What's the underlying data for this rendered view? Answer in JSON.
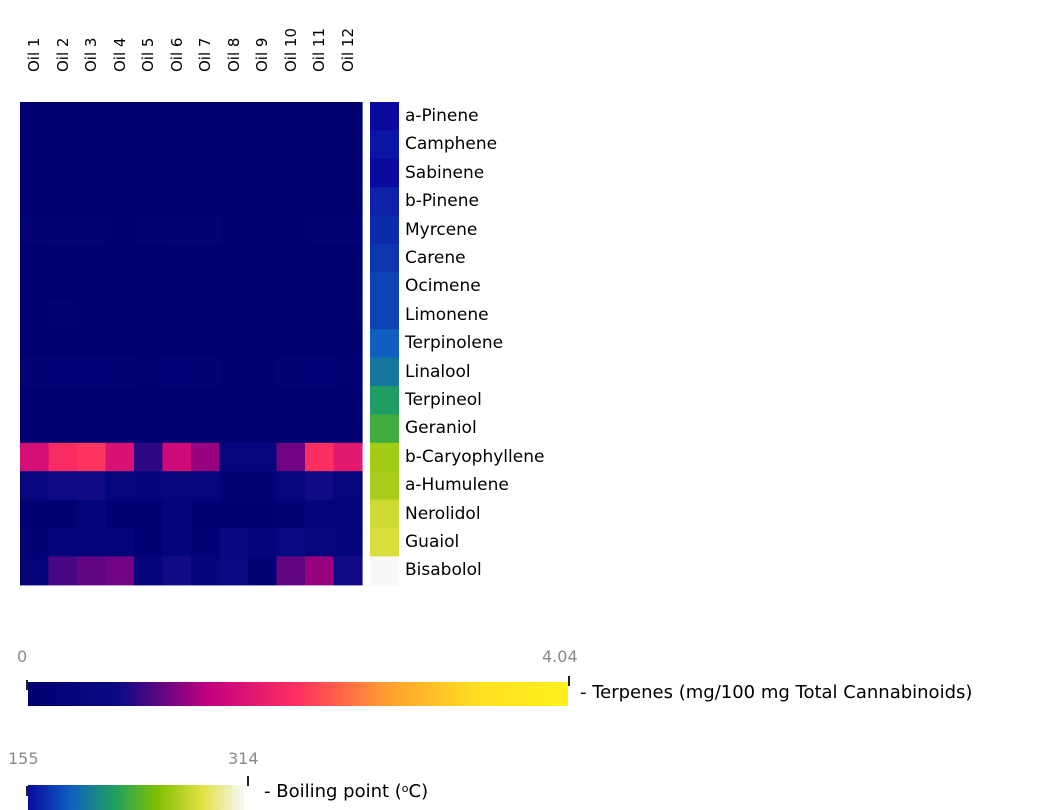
{
  "chart_data": {
    "type": "heatmap",
    "columns": [
      "Oil 1",
      "Oil 2",
      "Oil 3",
      "Oil 4",
      "Oil 5",
      "Oil 6",
      "Oil 7",
      "Oil 8",
      "Oil 9",
      "Oil 10",
      "Oil 11",
      "Oil 12"
    ],
    "rows": [
      "a-Pinene",
      "Camphene",
      "Sabinene",
      "b-Pinene",
      "Myrcene",
      "Carene",
      "Ocimene",
      "Limonene",
      "Terpinolene",
      "Linalool",
      "Terpineol",
      "Geraniol",
      "b-Caryophyllene",
      "a-Humulene",
      "Nerolidol",
      "Guaiol",
      "Bisabolol"
    ],
    "values": [
      [
        0.02,
        0.02,
        0.02,
        0.02,
        0.02,
        0.02,
        0.02,
        0.02,
        0.02,
        0.02,
        0.02,
        0.02
      ],
      [
        0.02,
        0.02,
        0.02,
        0.02,
        0.02,
        0.02,
        0.02,
        0.02,
        0.02,
        0.02,
        0.02,
        0.02
      ],
      [
        0.02,
        0.02,
        0.02,
        0.02,
        0.02,
        0.02,
        0.02,
        0.02,
        0.02,
        0.02,
        0.02,
        0.02
      ],
      [
        0.02,
        0.02,
        0.02,
        0.02,
        0.02,
        0.02,
        0.02,
        0.02,
        0.02,
        0.02,
        0.02,
        0.02
      ],
      [
        0.15,
        0.18,
        0.18,
        0.05,
        0.15,
        0.18,
        0.18,
        0.1,
        0.1,
        0.02,
        0.15,
        0.15
      ],
      [
        0.03,
        0.03,
        0.03,
        0.03,
        0.03,
        0.03,
        0.03,
        0.03,
        0.06,
        0.05,
        0.03,
        0.03
      ],
      [
        0.03,
        0.03,
        0.03,
        0.03,
        0.03,
        0.03,
        0.03,
        0.03,
        0.03,
        0.05,
        0.03,
        0.03
      ],
      [
        0.05,
        0.15,
        0.05,
        0.05,
        0.05,
        0.05,
        0.05,
        0.05,
        0.05,
        0.08,
        0.1,
        0.05
      ],
      [
        0.03,
        0.03,
        0.03,
        0.03,
        0.03,
        0.03,
        0.03,
        0.03,
        0.03,
        0.03,
        0.03,
        0.03
      ],
      [
        0.18,
        0.22,
        0.22,
        0.2,
        0.15,
        0.22,
        0.18,
        0.1,
        0.1,
        0.18,
        0.22,
        0.15
      ],
      [
        0.02,
        0.02,
        0.02,
        0.02,
        0.02,
        0.02,
        0.02,
        0.02,
        0.02,
        0.02,
        0.02,
        0.02
      ],
      [
        0.02,
        0.02,
        0.02,
        0.02,
        0.02,
        0.02,
        0.02,
        0.02,
        0.02,
        0.02,
        0.02,
        0.02
      ],
      [
        1.55,
        1.95,
        2.05,
        1.6,
        0.8,
        1.5,
        1.2,
        0.4,
        0.4,
        1.05,
        2.0,
        1.7
      ],
      [
        0.5,
        0.7,
        0.7,
        0.4,
        0.35,
        0.4,
        0.4,
        0.15,
        0.15,
        0.4,
        0.7,
        0.4
      ],
      [
        0.1,
        0.1,
        0.35,
        0.1,
        0.1,
        0.35,
        0.1,
        0.1,
        0.1,
        0.15,
        0.35,
        0.35
      ],
      [
        0.2,
        0.35,
        0.35,
        0.3,
        0.1,
        0.35,
        0.2,
        0.55,
        0.35,
        0.6,
        0.4,
        0.35
      ],
      [
        0.3,
        0.9,
        1.0,
        1.05,
        0.35,
        0.7,
        0.35,
        0.6,
        0.2,
        1.0,
        1.2,
        0.7
      ]
    ],
    "scale_min": 0,
    "scale_max": 4.04,
    "boiling_point": [
      155,
      159,
      143,
      163,
      167,
      171,
      176,
      176,
      186,
      198,
      217,
      230,
      262,
      263,
      276,
      280,
      314
    ],
    "bp_min": 155,
    "bp_max": 314,
    "terpene_scale_label": "- Terpenes (mg/100 mg Total Cannabinoids)",
    "bp_scale_label_prefix": "- Boiling point (",
    "bp_scale_label_sup": "o",
    "bp_scale_label_suffix": "C)",
    "colors": {
      "terpene_scale": [
        "#000070",
        "#0a0a85",
        "#c00080",
        "#ff3060",
        "#ffa030",
        "#ffe020",
        "#fff020"
      ],
      "bp_scale": [
        "#0a0aa0",
        "#1060c0",
        "#20a060",
        "#80c000",
        "#e0e040",
        "#f8f8f8"
      ]
    }
  }
}
